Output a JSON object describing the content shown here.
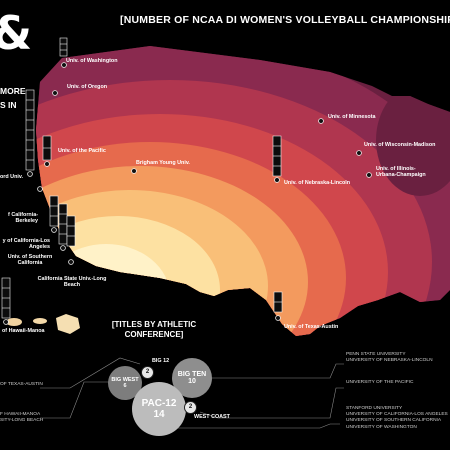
{
  "title": "[NUMBER OF NCAA DI WOMEN'S VOLLEYBALL CHAMPIONSHIPS BY",
  "intro_symbol": "&",
  "intro_lines": [
    "MORE",
    "S IN"
  ],
  "colors": {
    "background": "#000000",
    "ramp": [
      "#fff2c8",
      "#fde1a2",
      "#f9bf78",
      "#f39a5e",
      "#e66a4d",
      "#d0474c",
      "#b0364f",
      "#8a2a4f",
      "#6a2040"
    ],
    "marker": "#e8e8e8"
  },
  "schools": [
    {
      "label": "Univ. of Washington",
      "titles": 3
    },
    {
      "label": "Univ. of Oregon",
      "titles": 0
    },
    {
      "label": "Univ. of Minnesota",
      "titles": 0
    },
    {
      "label": "Univ. of Wisconsin-Madison",
      "titles": 0
    },
    {
      "label": "Univ. of the Pacific",
      "titles": 2
    },
    {
      "label": "Brigham Young Univ.",
      "titles": 0
    },
    {
      "label": "Univ. of Nebraska-Lincoln",
      "titles": 4
    },
    {
      "label": "Univ. of Illinois-Urbana-Champaign",
      "titles": 0
    },
    {
      "label": "ord Univ.",
      "titles": 8
    },
    {
      "label": "f California-Berkeley",
      "titles": 0
    },
    {
      "label": "y of California-Los Angeles",
      "titles": 3
    },
    {
      "label": "Univ. of Southern California",
      "titles": 4
    },
    {
      "label": "California State Univ.-Long Beach",
      "titles": 3
    },
    {
      "label": "Univ. of Texas-Austin",
      "titles": 2
    },
    {
      "label": "of Hawaii-Manoa",
      "titles": 4
    }
  ],
  "conference_panel": {
    "title": "[TITLES BY ATHLETIC CONFERENCE]",
    "labels": {
      "big12": "BIG 12",
      "westcoast": "WEST COAST"
    },
    "bubbles": [
      {
        "name": "BIG WEST",
        "value": "6"
      },
      {
        "name": "BIG TEN",
        "value": "10"
      },
      {
        "name": "PAC-12",
        "value": "14"
      }
    ],
    "badges": {
      "big12": "2",
      "westcoast": "2"
    },
    "big12_members": [
      "OF TEXAS-AUSTIN"
    ],
    "bigwest_members": [
      "F HAWAII-MANOA",
      "SITY-LONG BEACH"
    ],
    "bigten_members": [
      "PENN STATE UNIVERSITY",
      "UNIVERSITY OF NEBRASKA-LINCOLN"
    ],
    "westcoast_members": [
      "UNIVERSITY OF THE PACIFIC"
    ],
    "pac12_members": [
      "STANFORD UNIVERSITY",
      "UNIVERSITY OF CALIFORNIA-LOS ANGELES",
      "UNIVERSITY OF SOUTHERN CALIFORNIA",
      "UNIVERSITY OF WASHINGTON"
    ]
  }
}
